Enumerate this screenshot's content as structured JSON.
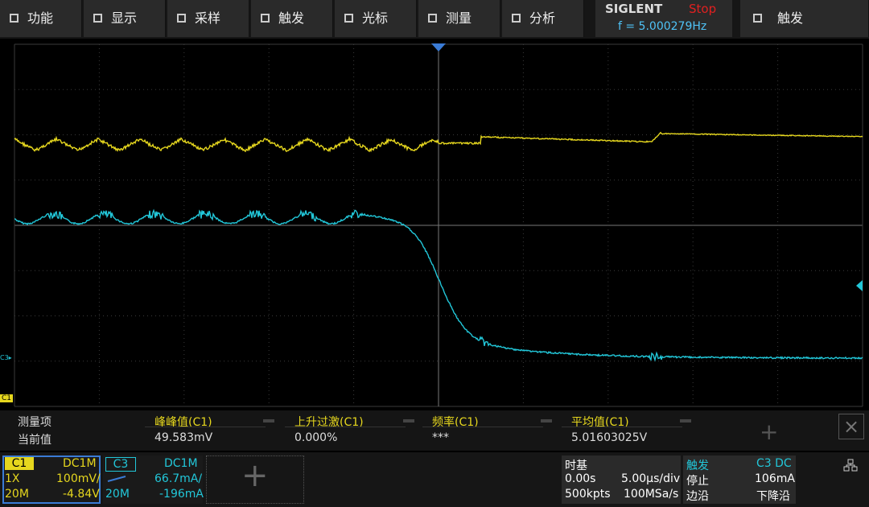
{
  "menu": [
    "功能",
    "显示",
    "采样",
    "触发",
    "光标",
    "测量",
    "分析"
  ],
  "brand": "SIGLENT",
  "status": "Stop",
  "frequency": "f = 5.000279Hz",
  "trigger_menu": "触发",
  "markers": {
    "c3": "C3▸",
    "c1": "C1"
  },
  "measure": {
    "headers": [
      "测量项",
      "峰峰值(C1)",
      "上升过激(C1)",
      "频率(C1)",
      "平均值(C1)"
    ],
    "values": [
      "当前值",
      "49.583mV",
      "0.000%",
      "***",
      "5.01603025V"
    ]
  },
  "c1": {
    "name": "C1",
    "coupling": "DC1M",
    "probe": "1X",
    "scale": "100mV/",
    "bandwidth": "20M",
    "offset": "-4.84V"
  },
  "c3": {
    "name": "C3",
    "coupling": "DC1M",
    "scale": "66.7mA/",
    "bandwidth": "20M",
    "offset": "-196mA"
  },
  "timebase": {
    "title": "时基",
    "delay": "0.00s",
    "scale": "5.00µs/div",
    "depth": "500kpts",
    "rate": "100MSa/s"
  },
  "trigger": {
    "title": "触发",
    "source": "C3 DC",
    "state": "停止",
    "level": "106mA",
    "type": "边沿",
    "slope": "下降沿"
  }
}
